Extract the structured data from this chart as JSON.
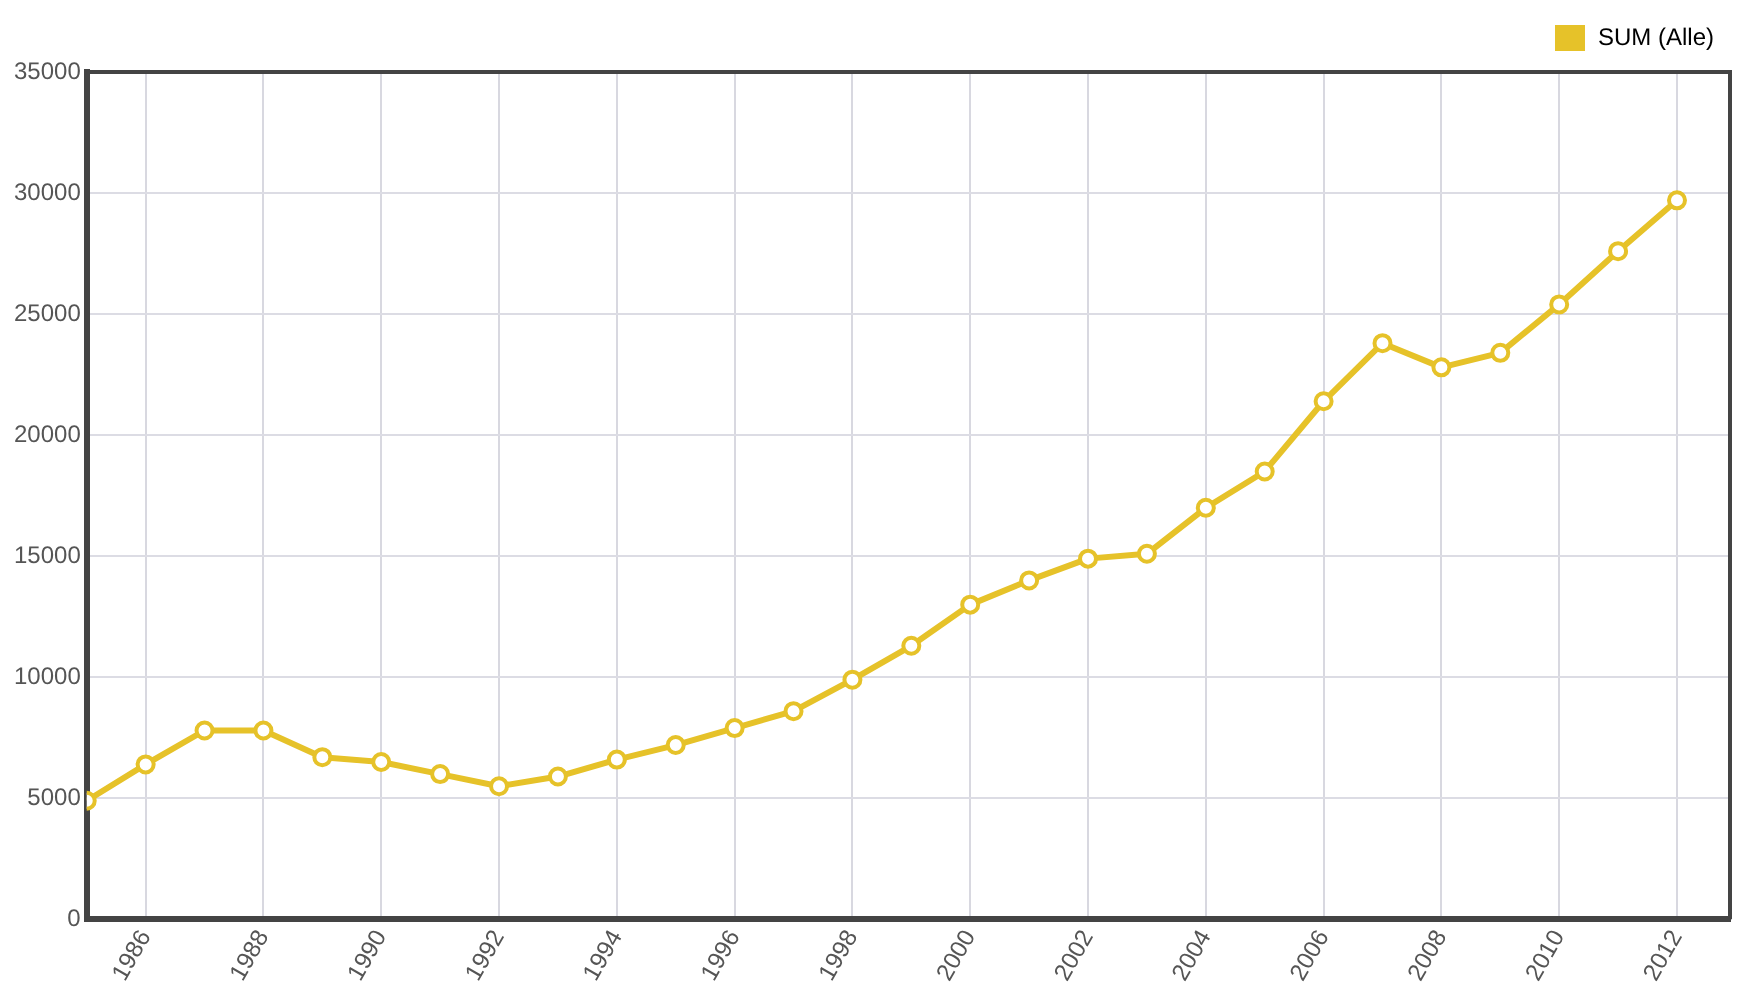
{
  "chart_data": {
    "type": "line",
    "x": [
      1985,
      1986,
      1987,
      1988,
      1989,
      1990,
      1991,
      1992,
      1993,
      1994,
      1995,
      1996,
      1997,
      1998,
      1999,
      2000,
      2001,
      2002,
      2003,
      2004,
      2005,
      2006,
      2007,
      2008,
      2009,
      2010,
      2011,
      2012
    ],
    "series": [
      {
        "name": "SUM (Alle)",
        "color": "#e6c229",
        "values": [
          4900,
          6400,
          7800,
          7800,
          6700,
          6500,
          6000,
          5500,
          5900,
          6600,
          7200,
          7900,
          8600,
          9900,
          11300,
          13000,
          14000,
          14900,
          15100,
          17000,
          18500,
          21400,
          23800,
          22800,
          23400,
          25400,
          27600,
          29700
        ]
      }
    ],
    "xlim": [
      1985,
      2012.9
    ],
    "xticks": [
      1986,
      1988,
      1990,
      1992,
      1994,
      1996,
      1998,
      2000,
      2002,
      2004,
      2006,
      2008,
      2010,
      2012
    ],
    "ylim": [
      0,
      35000
    ],
    "yticks": [
      0,
      5000,
      10000,
      15000,
      20000,
      25000,
      30000,
      35000
    ],
    "grid": true,
    "legend": "top right",
    "marker": "circle",
    "line_style": "solid"
  }
}
